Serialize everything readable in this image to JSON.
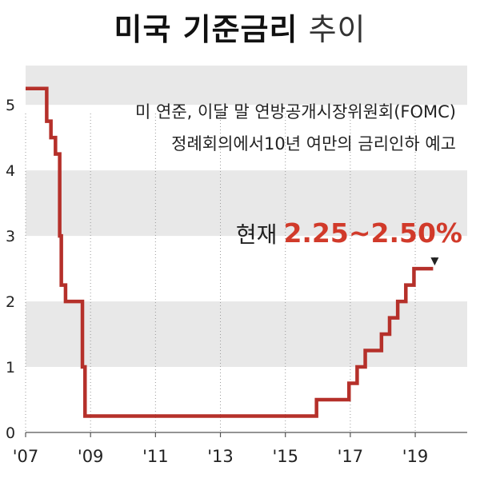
{
  "title": {
    "bold": "미국 기준금리",
    "light": "추이"
  },
  "annotation": {
    "line1": "미 연준, 이달 말 연방공개시장위원회(FOMC)",
    "line2": "정례회의에서10년 여만의 금리인하 예고"
  },
  "current": {
    "label": "현재",
    "value": "2.25~2.50%"
  },
  "colors": {
    "line": "#b5302a",
    "band": "#e8e8e8",
    "highlight": "#d13a2a"
  },
  "chart_data": {
    "type": "line",
    "title": "미국 기준금리 추이",
    "xlabel": "",
    "ylabel": "",
    "xlim": [
      2007.0,
      2020.6
    ],
    "ylim": [
      0,
      5.6
    ],
    "yticks": [
      0,
      1,
      2,
      3,
      4,
      5
    ],
    "xticks": [
      {
        "value": 2007,
        "label": "'07"
      },
      {
        "value": 2009,
        "label": "'09"
      },
      {
        "value": 2011,
        "label": "'11"
      },
      {
        "value": 2013,
        "label": "'13"
      },
      {
        "value": 2015,
        "label": "'15"
      },
      {
        "value": 2017,
        "label": "'17"
      },
      {
        "value": 2019,
        "label": "'19"
      }
    ],
    "step": true,
    "series": [
      {
        "name": "",
        "x": [
          2007.0,
          2007.65,
          2007.78,
          2007.92,
          2008.05,
          2008.1,
          2008.23,
          2008.28,
          2008.75,
          2008.83,
          2008.96,
          2015.96,
          2016.96,
          2017.21,
          2017.46,
          2017.96,
          2018.21,
          2018.46,
          2018.71,
          2018.96,
          2019.55
        ],
        "y": [
          5.25,
          4.75,
          4.5,
          4.25,
          3.0,
          2.25,
          2.0,
          2.0,
          1.0,
          0.25,
          0.25,
          0.5,
          0.75,
          1.0,
          1.25,
          1.5,
          1.75,
          2.0,
          2.25,
          2.5,
          2.5
        ]
      }
    ],
    "grid": "alternating horizontal bands, dotted vertical lines at year ticks",
    "current_value": "2.25~2.50%"
  }
}
